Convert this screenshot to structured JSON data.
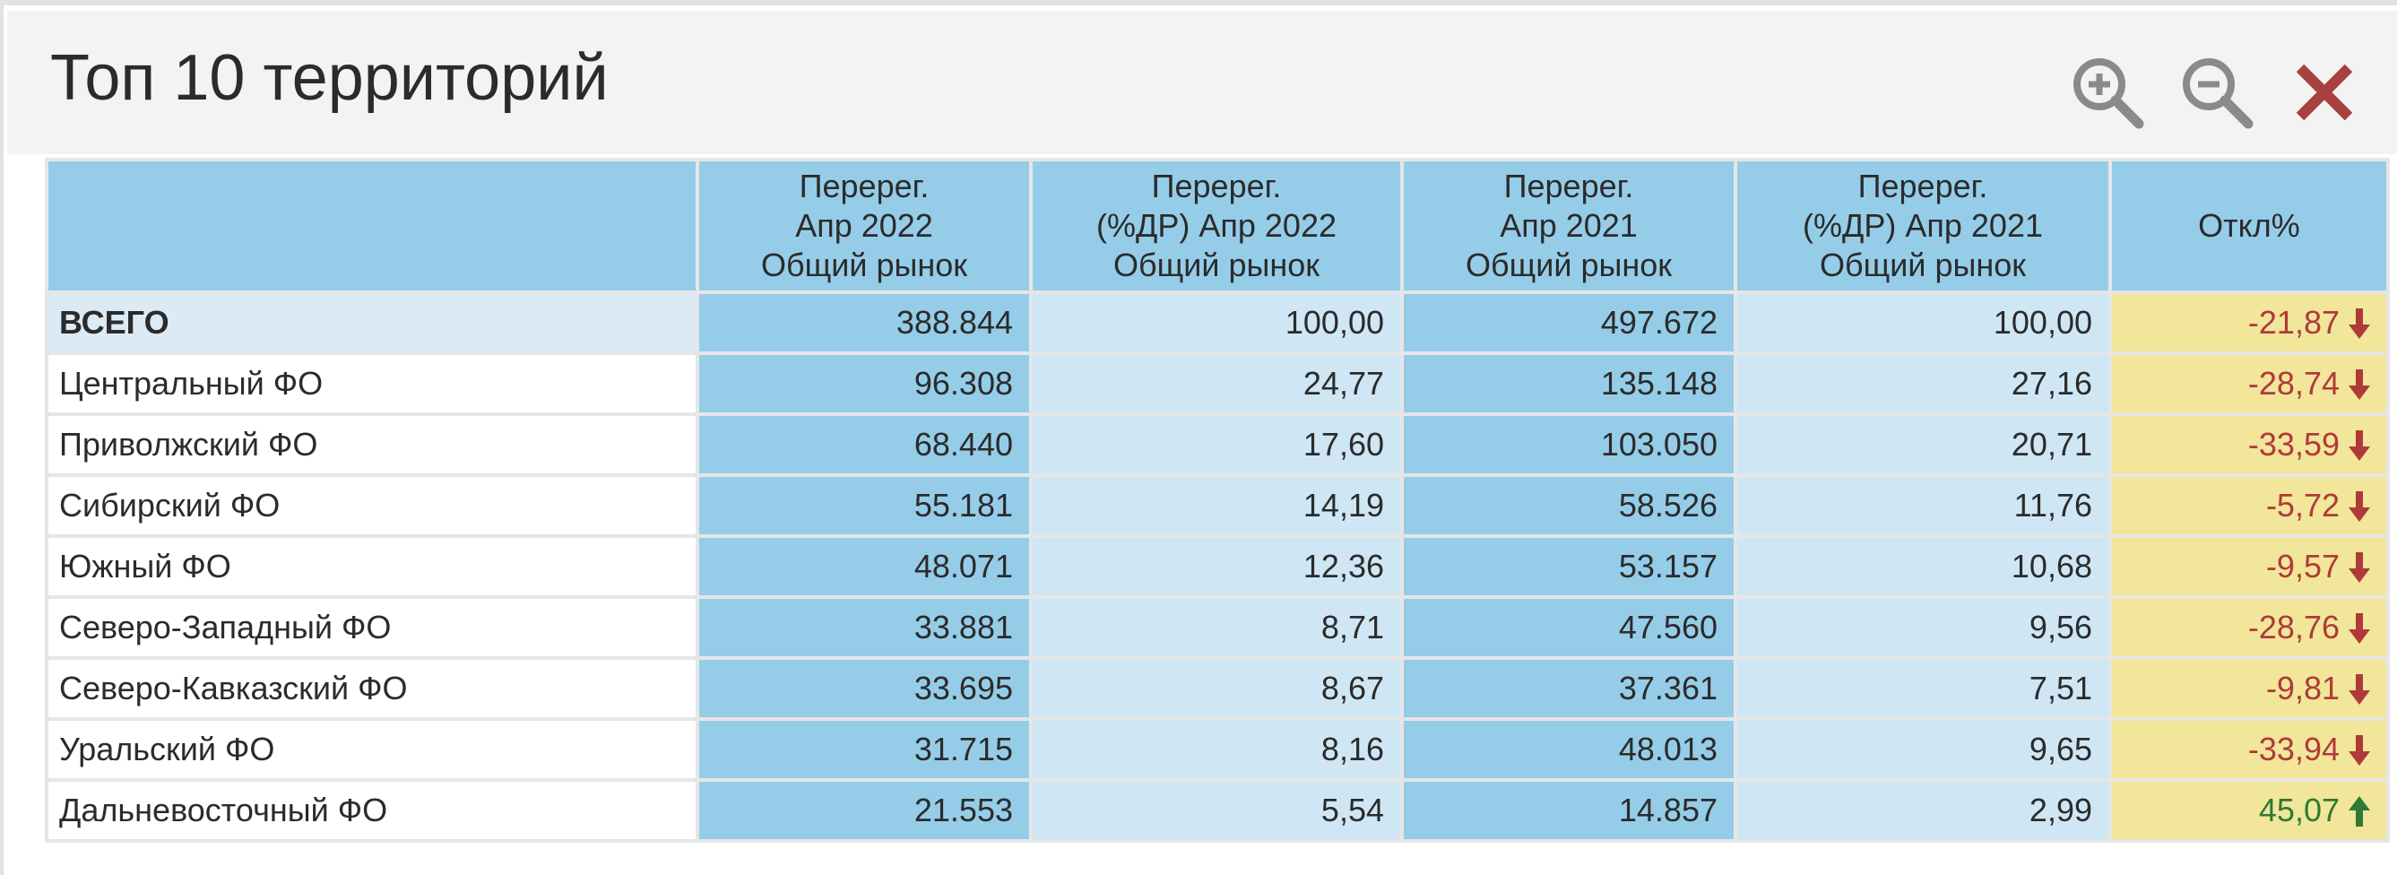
{
  "window": {
    "title": "Топ 10 территорий",
    "tools": [
      {
        "name": "zoom-in",
        "icon": "zoom-in-icon"
      },
      {
        "name": "zoom-out",
        "icon": "zoom-out-icon"
      },
      {
        "name": "close",
        "icon": "close-icon"
      }
    ]
  },
  "colors": {
    "header_cell": "#95cde9",
    "dark_column": "#95cde9",
    "light_column": "#cfe7f4",
    "deviation_column": "#f1e69a",
    "negative": "#b03a3a",
    "positive": "#2f7a37",
    "close_icon": "#a8403f"
  },
  "table": {
    "headers": [
      [],
      [
        "Перерег.",
        "Апр 2022",
        "Общий рынок"
      ],
      [
        "Перерег.",
        "(%ДР) Апр 2022",
        "Общий рынок"
      ],
      [
        "Перерег.",
        "Апр 2021",
        "Общий рынок"
      ],
      [
        "Перерег.",
        "(%ДР) Апр 2021",
        "Общий рынок"
      ],
      [
        "Откл%"
      ]
    ],
    "rows": [
      {
        "name": "ВСЕГО",
        "v2022": "388.844",
        "p2022": "100,00",
        "v2021": "497.672",
        "p2021": "100,00",
        "dev": "-21,87",
        "trend": "down"
      },
      {
        "name": "Центральный ФО",
        "v2022": "96.308",
        "p2022": "24,77",
        "v2021": "135.148",
        "p2021": "27,16",
        "dev": "-28,74",
        "trend": "down"
      },
      {
        "name": "Приволжский ФО",
        "v2022": "68.440",
        "p2022": "17,60",
        "v2021": "103.050",
        "p2021": "20,71",
        "dev": "-33,59",
        "trend": "down"
      },
      {
        "name": "Сибирский ФО",
        "v2022": "55.181",
        "p2022": "14,19",
        "v2021": "58.526",
        "p2021": "11,76",
        "dev": "-5,72",
        "trend": "down"
      },
      {
        "name": "Южный ФО",
        "v2022": "48.071",
        "p2022": "12,36",
        "v2021": "53.157",
        "p2021": "10,68",
        "dev": "-9,57",
        "trend": "down"
      },
      {
        "name": "Северо-Западный ФО",
        "v2022": "33.881",
        "p2022": "8,71",
        "v2021": "47.560",
        "p2021": "9,56",
        "dev": "-28,76",
        "trend": "down"
      },
      {
        "name": "Северо-Кавказский ФО",
        "v2022": "33.695",
        "p2022": "8,67",
        "v2021": "37.361",
        "p2021": "7,51",
        "dev": "-9,81",
        "trend": "down"
      },
      {
        "name": "Уральский ФО",
        "v2022": "31.715",
        "p2022": "8,16",
        "v2021": "48.013",
        "p2021": "9,65",
        "dev": "-33,94",
        "trend": "down"
      },
      {
        "name": "Дальневосточный ФО",
        "v2022": "21.553",
        "p2022": "5,54",
        "v2021": "14.857",
        "p2021": "2,99",
        "dev": "45,07",
        "trend": "up"
      }
    ]
  }
}
